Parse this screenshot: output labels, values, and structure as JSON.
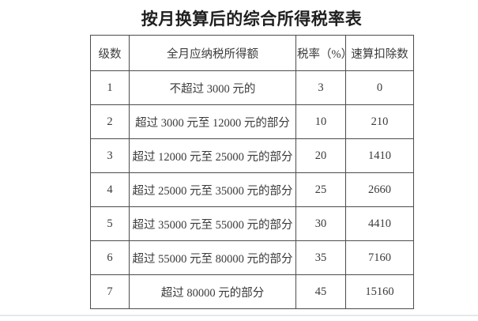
{
  "page": {
    "title": "按月换算后的综合所得税率表"
  },
  "table": {
    "headers": [
      "级数",
      "全月应纳税所得额",
      "税率（%）",
      "速算扣除数"
    ],
    "rows": [
      [
        "1",
        "不超过 3000 元的",
        "3",
        "0"
      ],
      [
        "2",
        "超过 3000 元至 12000 元的部分",
        "10",
        "210"
      ],
      [
        "3",
        "超过 12000 元至 25000 元的部分",
        "20",
        "1410"
      ],
      [
        "4",
        "超过 25000 元至 35000 元的部分",
        "25",
        "2660"
      ],
      [
        "5",
        "超过 35000 元至 55000 元的部分",
        "30",
        "4410"
      ],
      [
        "6",
        "超过 55000 元至 80000 元的部分",
        "35",
        "7160"
      ],
      [
        "7",
        "超过 80000 元的部分",
        "45",
        "15160"
      ]
    ]
  },
  "colors": {
    "border": "#4c4c4c",
    "text": "#3a3a3a",
    "title": "#1f1f1f",
    "bottom_divider": "#e4e8ec"
  }
}
